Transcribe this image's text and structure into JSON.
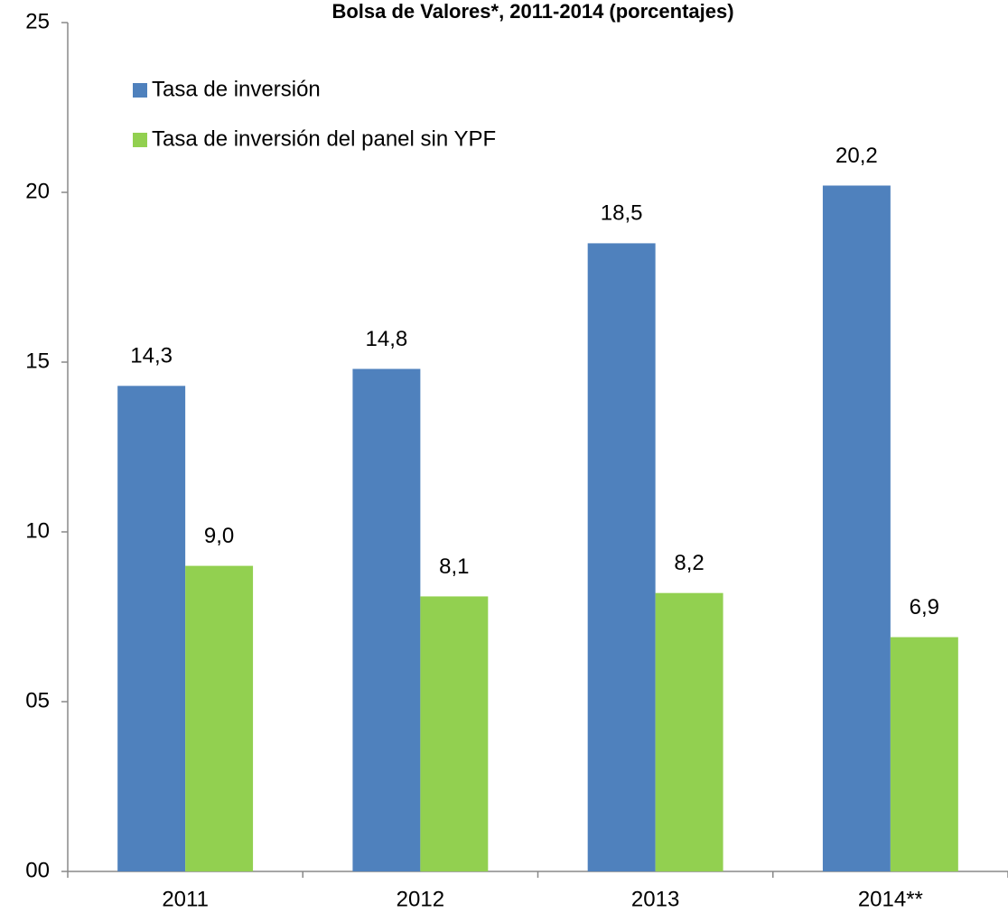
{
  "chart_data": {
    "type": "bar",
    "title": "Bolsa de Valores*, 2011-2014 (porcentajes)",
    "categories": [
      "2011",
      "2012",
      "2013",
      "2014**"
    ],
    "series": [
      {
        "name": "Tasa de inversión",
        "color": "#4f81bd",
        "values": [
          14.3,
          14.8,
          18.5,
          20.2
        ],
        "value_labels": [
          "14,3",
          "14,8",
          "18,5",
          "20,2"
        ]
      },
      {
        "name": "Tasa de inversión del panel sin YPF",
        "color": "#92d050",
        "values": [
          9.0,
          8.1,
          8.2,
          6.9
        ],
        "value_labels": [
          "9,0",
          "8,1",
          "8,2",
          "6,9"
        ]
      }
    ],
    "ylim": [
      0,
      25
    ],
    "yticks": [
      {
        "value": 0,
        "label": "00"
      },
      {
        "value": 5,
        "label": "05"
      },
      10,
      15,
      20,
      25
    ],
    "grid": false,
    "legend": "top-left"
  }
}
